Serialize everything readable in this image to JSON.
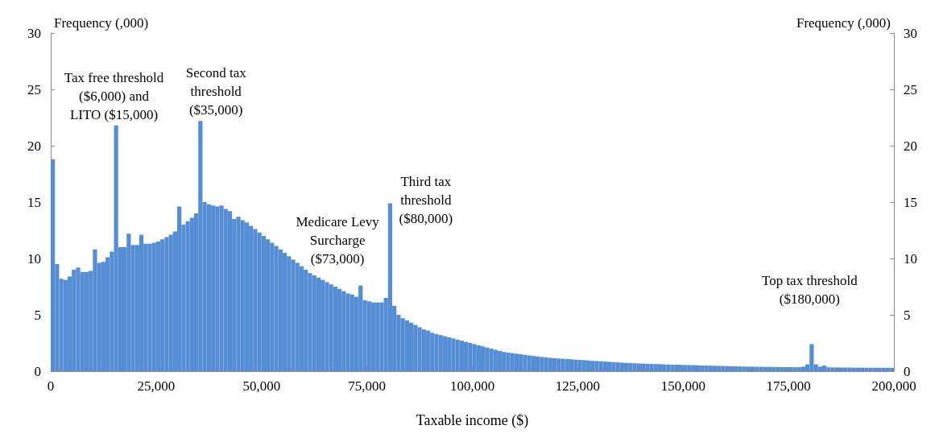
{
  "chart_data": {
    "type": "histogram",
    "xlabel": "Taxable income ($)",
    "ylabel": "Frequency (,000)",
    "y2label": "Frequency (,000)",
    "color": "#558ed5",
    "bins": [
      0,
      1000,
      2000,
      3000,
      4000,
      5000,
      6000,
      7000,
      8000,
      9000,
      10000,
      11000,
      12000,
      13000,
      14000,
      15000,
      16000,
      17000,
      18000,
      19000,
      20000,
      21000,
      22000,
      23000,
      24000,
      25000,
      26000,
      27000,
      28000,
      29000,
      30000,
      31000,
      32000,
      33000,
      34000,
      35000,
      36000,
      37000,
      38000,
      39000,
      40000,
      41000,
      42000,
      43000,
      44000,
      45000,
      46000,
      47000,
      48000,
      49000,
      50000,
      51000,
      52000,
      53000,
      54000,
      55000,
      56000,
      57000,
      58000,
      59000,
      60000,
      61000,
      62000,
      63000,
      64000,
      65000,
      66000,
      67000,
      68000,
      69000,
      70000,
      71000,
      72000,
      73000,
      74000,
      75000,
      76000,
      77000,
      78000,
      79000,
      80000,
      81000,
      82000,
      83000,
      84000,
      85000,
      86000,
      87000,
      88000,
      89000,
      90000,
      91000,
      92000,
      93000,
      94000,
      95000,
      96000,
      97000,
      98000,
      99000,
      100000,
      101000,
      102000,
      103000,
      104000,
      105000,
      106000,
      107000,
      108000,
      109000,
      110000,
      111000,
      112000,
      113000,
      114000,
      115000,
      116000,
      117000,
      118000,
      119000,
      120000,
      121000,
      122000,
      123000,
      124000,
      125000,
      126000,
      127000,
      128000,
      129000,
      130000,
      131000,
      132000,
      133000,
      134000,
      135000,
      136000,
      137000,
      138000,
      139000,
      140000,
      141000,
      142000,
      143000,
      144000,
      145000,
      146000,
      147000,
      148000,
      149000,
      150000,
      151000,
      152000,
      153000,
      154000,
      155000,
      156000,
      157000,
      158000,
      159000,
      160000,
      161000,
      162000,
      163000,
      164000,
      165000,
      166000,
      167000,
      168000,
      169000,
      170000,
      171000,
      172000,
      173000,
      174000,
      175000,
      176000,
      177000,
      178000,
      179000,
      180000,
      181000,
      182000,
      183000,
      184000,
      185000,
      186000,
      187000,
      188000,
      189000,
      190000,
      191000,
      192000,
      193000,
      194000,
      195000,
      196000,
      197000,
      198000,
      199000,
      200000
    ],
    "values": [
      18.8,
      9.5,
      8.2,
      8.1,
      8.4,
      9.0,
      9.2,
      8.8,
      8.8,
      8.9,
      10.8,
      9.6,
      9.7,
      10.1,
      10.6,
      21.8,
      11.0,
      11.0,
      12.2,
      11.2,
      11.2,
      12.1,
      11.3,
      11.3,
      11.4,
      11.5,
      11.7,
      11.9,
      12.1,
      12.4,
      14.6,
      13.0,
      13.3,
      13.6,
      14.0,
      22.2,
      15.0,
      14.8,
      14.7,
      14.6,
      14.7,
      14.4,
      14.2,
      13.5,
      13.7,
      13.4,
      13.2,
      12.9,
      12.6,
      12.3,
      12.0,
      11.7,
      11.4,
      11.1,
      10.8,
      10.5,
      10.2,
      9.9,
      9.6,
      9.3,
      9.0,
      8.7,
      8.5,
      8.3,
      8.1,
      7.9,
      7.7,
      7.5,
      7.3,
      7.1,
      6.9,
      6.8,
      6.6,
      7.6,
      6.3,
      6.2,
      6.1,
      6.1,
      6.1,
      6.5,
      14.9,
      5.8,
      5.0,
      4.7,
      4.5,
      4.3,
      4.1,
      3.9,
      3.7,
      3.6,
      3.4,
      3.3,
      3.2,
      3.1,
      3.0,
      2.9,
      2.8,
      2.7,
      2.6,
      2.5,
      2.4,
      2.3,
      2.2,
      2.1,
      2.0,
      1.9,
      1.8,
      1.7,
      1.65,
      1.6,
      1.55,
      1.5,
      1.45,
      1.4,
      1.35,
      1.3,
      1.26,
      1.22,
      1.18,
      1.15,
      1.12,
      1.1,
      1.08,
      1.05,
      1.02,
      1.0,
      0.98,
      0.95,
      0.92,
      0.9,
      0.88,
      0.85,
      0.83,
      0.8,
      0.78,
      0.76,
      0.74,
      0.72,
      0.7,
      0.68,
      0.67,
      0.66,
      0.64,
      0.63,
      0.62,
      0.6,
      0.59,
      0.58,
      0.57,
      0.56,
      0.55,
      0.54,
      0.53,
      0.52,
      0.51,
      0.5,
      0.49,
      0.48,
      0.47,
      0.46,
      0.45,
      0.44,
      0.43,
      0.42,
      0.41,
      0.4,
      0.4,
      0.39,
      0.39,
      0.38,
      0.38,
      0.37,
      0.37,
      0.36,
      0.36,
      0.36,
      0.35,
      0.35,
      0.4,
      0.6,
      2.4,
      0.6,
      0.4,
      0.5,
      0.34,
      0.33,
      0.33,
      0.32,
      0.32,
      0.32,
      0.31,
      0.31,
      0.31,
      0.3,
      0.3,
      0.3,
      0.3,
      0.3,
      0.3,
      0.3
    ],
    "xlim": [
      0,
      200000
    ],
    "xticks": [
      0,
      {
        "value": 25000,
        "label": "25,000"
      },
      {
        "value": 50000,
        "label": "50,000"
      },
      {
        "value": 75000,
        "label": "75,000"
      },
      {
        "value": 100000,
        "label": "100,000"
      },
      {
        "value": 125000,
        "label": "125,000"
      },
      {
        "value": 150000,
        "label": "150,000"
      },
      {
        "value": 175000,
        "label": "175,000"
      },
      {
        "value": 200000,
        "label": "200,000"
      }
    ],
    "ylim": [
      0,
      30
    ],
    "yticks": [
      0,
      5,
      10,
      15,
      20,
      25,
      30
    ],
    "y2lim": [
      0,
      30
    ],
    "y2ticks": [
      0,
      5,
      10,
      15,
      20,
      25,
      30
    ],
    "grid": false,
    "annotations": [
      {
        "text": "Tax free threshold\n($6,000) and\nLITO ($15,000)",
        "x": 15000,
        "y": 21.8
      },
      {
        "text": "Second tax\nthreshold\n($35,000)",
        "x": 35000,
        "y": 22.2
      },
      {
        "text": "Medicare Levy\nSurcharge\n($73,000)",
        "x": 73000,
        "y": 7.6
      },
      {
        "text": "Third tax\nthreshold\n($80,000)",
        "x": 80000,
        "y": 14.9
      },
      {
        "text": "Top tax threshold\n($180,000)",
        "x": 180000,
        "y": 2.4
      }
    ]
  }
}
